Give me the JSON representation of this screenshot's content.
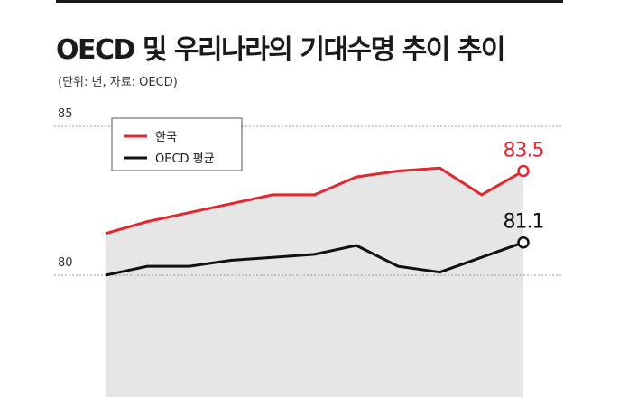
{
  "title": "OECD 및 우리나라의 기대수명 추이 추이",
  "subtitle": "(단위: 년, 자료: OECD)",
  "chart_data": {
    "type": "line",
    "title": "OECD 및 우리나라의 기대수명 추이 추이",
    "xlabel": "",
    "ylabel": "",
    "ylim": [
      80,
      85
    ],
    "yticks": [
      80,
      85
    ],
    "grid": true,
    "legend_position": "top-left",
    "series": [
      {
        "name": "한국",
        "color": "#e0282e",
        "values": [
          81.4,
          81.8,
          82.1,
          82.4,
          82.7,
          82.7,
          83.3,
          83.5,
          83.6,
          82.7,
          83.5
        ],
        "end_label": "83.5"
      },
      {
        "name": "OECD 평균",
        "color": "#111111",
        "values": [
          80.0,
          80.3,
          80.3,
          80.5,
          80.6,
          80.7,
          81.0,
          80.3,
          80.1,
          80.6,
          81.1
        ],
        "end_label": "81.1"
      }
    ]
  }
}
